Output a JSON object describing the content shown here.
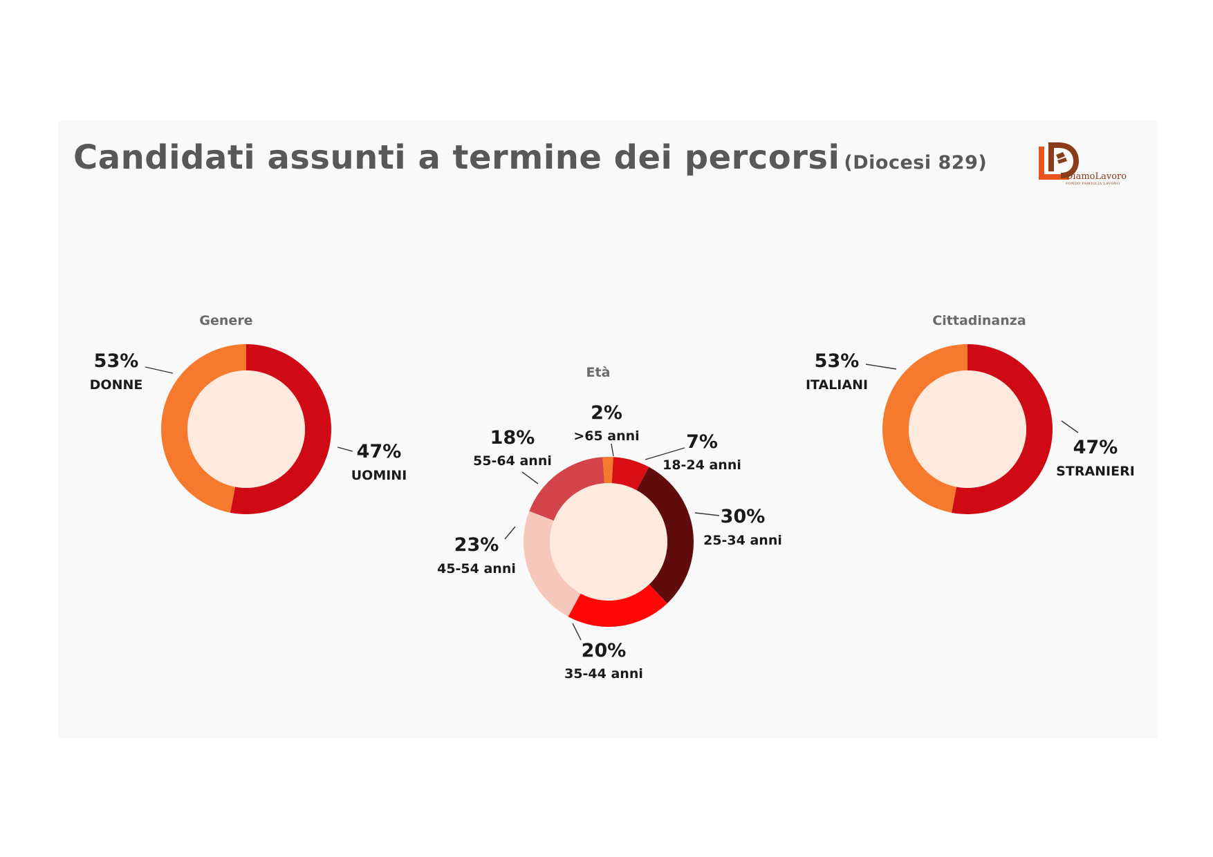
{
  "title": "Candidati assunti a termine dei percorsi",
  "subtitle": "(Diocesi 829)",
  "logo": {
    "name": "DiamoLavoro",
    "tagline": "FONDO FAMIGLIA LAVORO",
    "colors": [
      "#e8541c",
      "#8a3c1a"
    ]
  },
  "chart_data": [
    {
      "type": "pie",
      "title": "Genere",
      "categories": [
        "DONNE",
        "UOMINI"
      ],
      "values": [
        53,
        47
      ],
      "labels": [
        "53%",
        "47%"
      ],
      "colors": [
        "#cf0a15",
        "#f57a2e"
      ],
      "center_color": "#fde9dd"
    },
    {
      "type": "pie",
      "title": "Età",
      "categories": [
        ">65 anni",
        "18-24 anni",
        "25-34 anni",
        "35-44 anni",
        "45-54 anni",
        "55-64 anni"
      ],
      "values": [
        2,
        7,
        30,
        20,
        23,
        18
      ],
      "labels": [
        "2%",
        "7%",
        "30%",
        "20%",
        "23%",
        "18%"
      ],
      "colors": [
        "#f57a2e",
        "#d90e14",
        "#600c0c",
        "#ff0707",
        "#f6c7bb",
        "#d3434a"
      ],
      "center_color": "#fde9dd"
    },
    {
      "type": "pie",
      "title": "Cittadinanza",
      "categories": [
        "ITALIANI",
        "STRANIERI"
      ],
      "values": [
        53,
        47
      ],
      "labels": [
        "53%",
        "47%"
      ],
      "colors": [
        "#cf0a15",
        "#f57a2e"
      ],
      "center_color": "#fde9dd"
    }
  ]
}
